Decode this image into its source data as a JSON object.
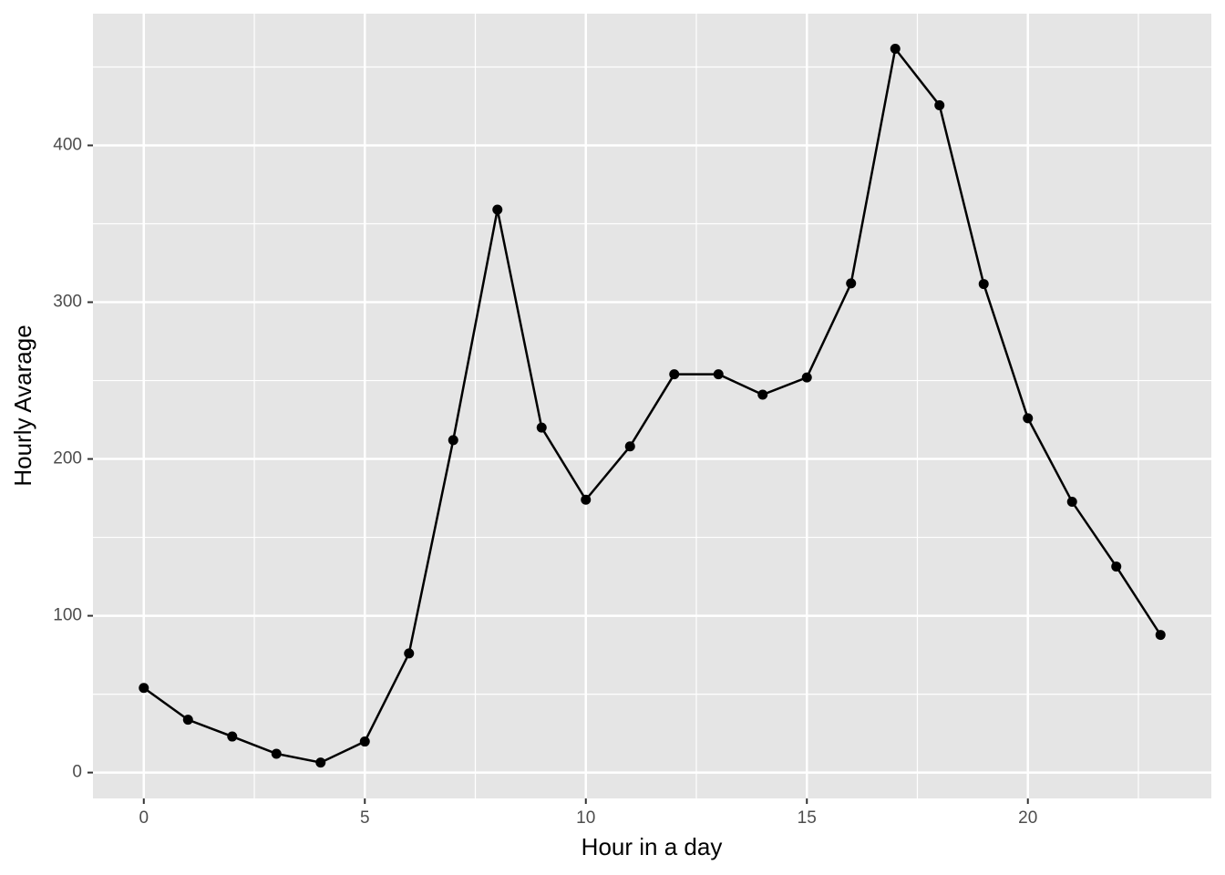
{
  "chart_data": {
    "type": "line",
    "x_label": "Hour in a day",
    "y_label": "Hourly Avarage",
    "x": [
      0,
      1,
      2,
      3,
      4,
      5,
      6,
      7,
      8,
      9,
      10,
      11,
      12,
      13,
      14,
      15,
      16,
      17,
      18,
      19,
      20,
      21,
      22,
      23
    ],
    "series": [
      {
        "name": "Hourly Avarage",
        "color": "#000000",
        "values": [
          54,
          33.7,
          23,
          12,
          6.4,
          19.8,
          76,
          212,
          359,
          220,
          174,
          208,
          254,
          254,
          241,
          252,
          312,
          461.6,
          425.6,
          311.6,
          226,
          172.7,
          131.4,
          87.8
        ]
      }
    ],
    "xlim": [
      -1.15,
      24.15
    ],
    "xticks": [
      0,
      5,
      10,
      15,
      20
    ],
    "ylim": [
      -16.5,
      484
    ],
    "yticks": [
      0,
      100,
      200,
      300,
      400
    ],
    "grid": true,
    "panel_color": "#e5e5e5"
  }
}
